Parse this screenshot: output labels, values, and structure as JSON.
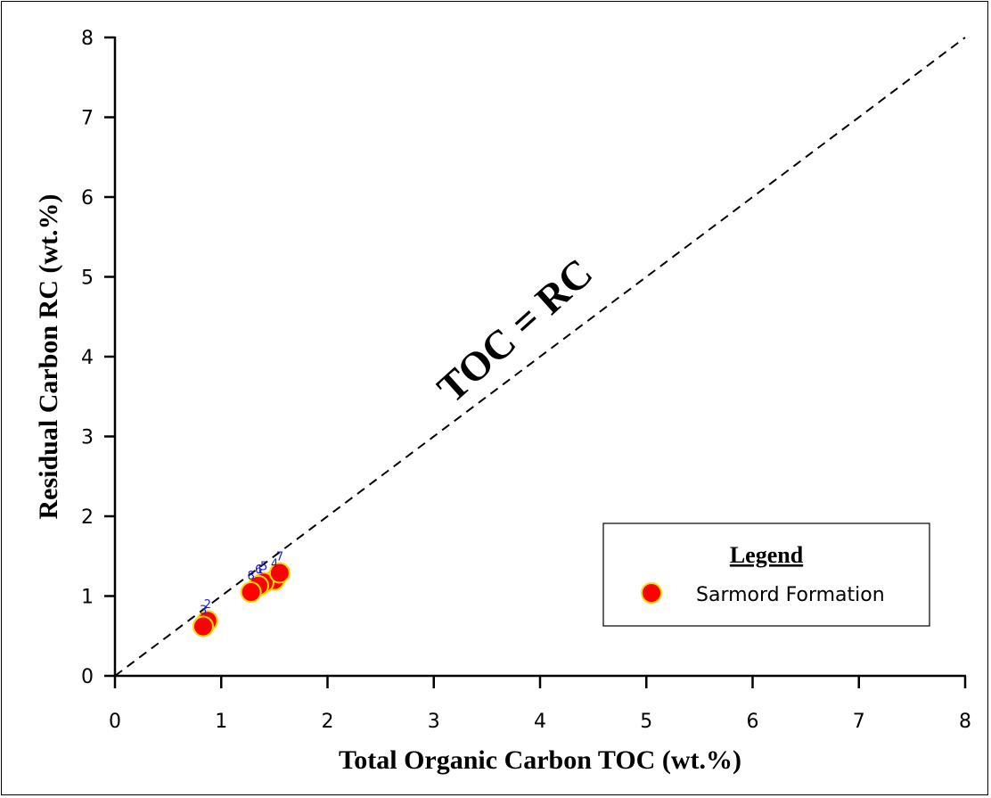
{
  "chart_data": {
    "type": "scatter",
    "title": "",
    "xlabel": "Total Organic Carbon TOC (wt.%)",
    "ylabel": "Residual Carbon RC (wt.%)",
    "xlim": [
      0,
      8
    ],
    "ylim": [
      0,
      8
    ],
    "xticks": [
      "0",
      "1",
      "2",
      "3",
      "4",
      "5",
      "6",
      "7",
      "8"
    ],
    "yticks": [
      "0",
      "1",
      "2",
      "3",
      "4",
      "5",
      "6",
      "7",
      "8"
    ],
    "grid": false,
    "reference_line": {
      "label": "TOC = RC",
      "from": [
        0,
        0
      ],
      "to": [
        8,
        8
      ],
      "style": "dashed"
    },
    "legend": {
      "title": "Legend",
      "placement": "bottom-right",
      "entries": [
        "Sarmord Formation"
      ]
    },
    "series": [
      {
        "name": "Sarmord Formation",
        "color": "#ff0000",
        "edge_color": "#ffd700",
        "points": [
          {
            "label": "1",
            "x": 1.36,
            "y": 1.13
          },
          {
            "label": "2",
            "x": 0.87,
            "y": 0.69
          },
          {
            "label": "3",
            "x": 0.83,
            "y": 0.62
          },
          {
            "label": "4",
            "x": 1.5,
            "y": 1.2
          },
          {
            "label": "5",
            "x": 1.4,
            "y": 1.17
          },
          {
            "label": "6",
            "x": 1.35,
            "y": 1.13
          },
          {
            "label": "7",
            "x": 1.55,
            "y": 1.29
          },
          {
            "label": "8",
            "x": 1.28,
            "y": 1.05
          }
        ]
      }
    ]
  }
}
